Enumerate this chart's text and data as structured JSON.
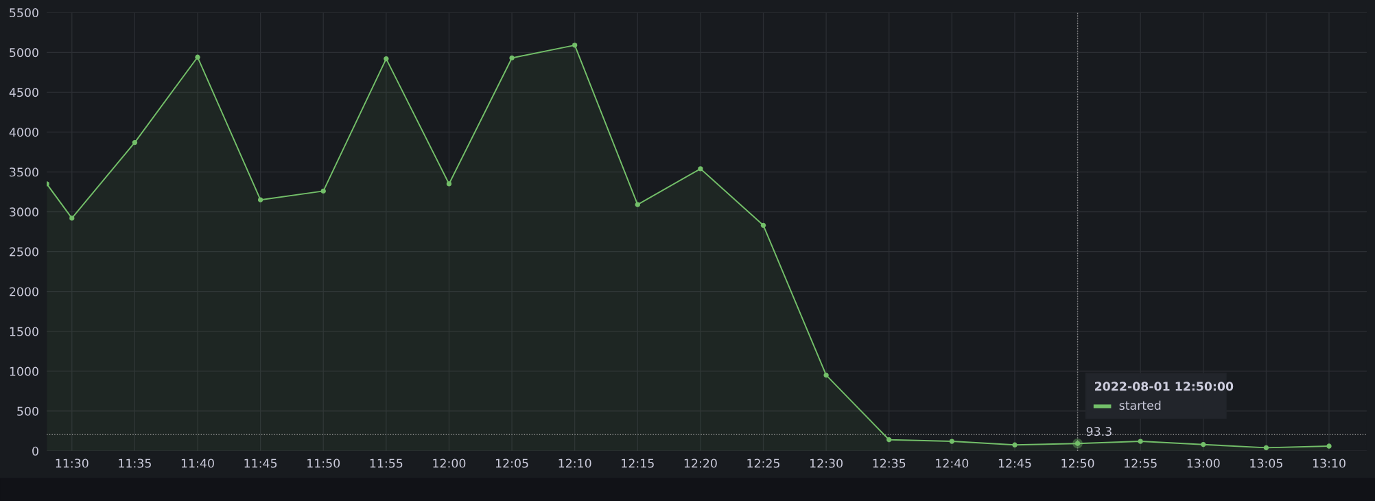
{
  "chart_data": {
    "type": "area",
    "x": [
      "2022-08-01T11:28",
      "2022-08-01T11:30",
      "2022-08-01T11:35",
      "2022-08-01T11:40",
      "2022-08-01T11:45",
      "2022-08-01T11:50",
      "2022-08-01T11:55",
      "2022-08-01T12:00",
      "2022-08-01T12:05",
      "2022-08-01T12:10",
      "2022-08-01T12:15",
      "2022-08-01T12:20",
      "2022-08-01T12:25",
      "2022-08-01T12:30",
      "2022-08-01T12:35",
      "2022-08-01T12:40",
      "2022-08-01T12:45",
      "2022-08-01T12:50",
      "2022-08-01T12:55",
      "2022-08-01T13:00",
      "2022-08-01T13:05",
      "2022-08-01T13:10"
    ],
    "series": [
      {
        "name": "started",
        "color": "#73bf69",
        "values": [
          3350,
          2920,
          3870,
          4940,
          3150,
          3260,
          4920,
          3350,
          4930,
          5090,
          3090,
          3540,
          2830,
          950,
          140,
          120,
          75,
          93.3,
          120,
          80,
          40,
          60
        ],
        "value_labels": [
          null,
          null,
          null,
          null,
          null,
          null,
          null,
          null,
          null,
          null,
          null,
          null,
          null,
          null,
          null,
          null,
          null,
          "93.3",
          null,
          null,
          null,
          null
        ]
      }
    ],
    "xlim": [
      "2022-08-01T11:28",
      "2022-08-01T13:13"
    ],
    "xticks": [
      {
        "value": "2022-08-01T11:30",
        "label": "11:30"
      },
      {
        "value": "2022-08-01T11:35",
        "label": "11:35"
      },
      {
        "value": "2022-08-01T11:40",
        "label": "11:40"
      },
      {
        "value": "2022-08-01T11:45",
        "label": "11:45"
      },
      {
        "value": "2022-08-01T11:50",
        "label": "11:50"
      },
      {
        "value": "2022-08-01T11:55",
        "label": "11:55"
      },
      {
        "value": "2022-08-01T12:00",
        "label": "12:00"
      },
      {
        "value": "2022-08-01T12:05",
        "label": "12:05"
      },
      {
        "value": "2022-08-01T12:10",
        "label": "12:10"
      },
      {
        "value": "2022-08-01T12:15",
        "label": "12:15"
      },
      {
        "value": "2022-08-01T12:20",
        "label": "12:20"
      },
      {
        "value": "2022-08-01T12:25",
        "label": "12:25"
      },
      {
        "value": "2022-08-01T12:30",
        "label": "12:30"
      },
      {
        "value": "2022-08-01T12:35",
        "label": "12:35"
      },
      {
        "value": "2022-08-01T12:40",
        "label": "12:40"
      },
      {
        "value": "2022-08-01T12:45",
        "label": "12:45"
      },
      {
        "value": "2022-08-01T12:50",
        "label": "12:50"
      },
      {
        "value": "2022-08-01T12:55",
        "label": "12:55"
      },
      {
        "value": "2022-08-01T13:00",
        "label": "13:00"
      },
      {
        "value": "2022-08-01T13:05",
        "label": "13:05"
      },
      {
        "value": "2022-08-01T13:10",
        "label": "13:10"
      }
    ],
    "ylim": [
      0,
      5500
    ],
    "yticks": [
      0,
      500,
      1000,
      1500,
      2000,
      2500,
      3000,
      3500,
      4000,
      4500,
      5000,
      5500
    ],
    "grid": true,
    "marker": "circle",
    "line_style": "solid",
    "legend": "bottom right",
    "ref_lines": [
      {
        "axis": "x",
        "value": "2022-08-01T12:50",
        "line_style": "dotted",
        "color": "#8e8e8e"
      },
      {
        "axis": "y",
        "value": 205,
        "line_style": "dotted",
        "color": "#8e8e8e"
      }
    ],
    "annotations": [
      "2022-08-01 12:50:00"
    ]
  }
}
